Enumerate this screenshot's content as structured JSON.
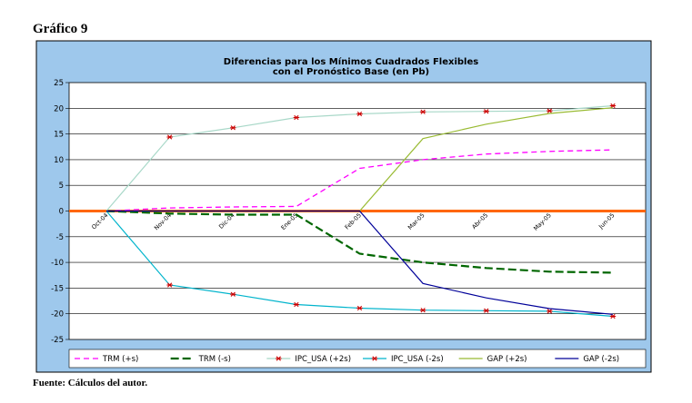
{
  "figure_label": "Gráfico 9",
  "source_note": "Fuente: Cálculos del autor.",
  "chart_data": {
    "type": "line",
    "title": "Diferencias para los Mínimos Cuadrados Flexibles",
    "subtitle": "con el Pronóstico Base (en Pb)",
    "categories": [
      "Oct-04",
      "Nov-04",
      "Dic-04",
      "Ene-05",
      "Feb-05",
      "Mar-05",
      "Abr-05",
      "May-05",
      "Jun-05"
    ],
    "ylim": [
      -25,
      25
    ],
    "yticks": [
      25,
      20,
      15,
      10,
      5,
      0,
      -5,
      -10,
      -15,
      -20,
      -25
    ],
    "grid": true,
    "legend_position": "bottom",
    "series": [
      {
        "name": "TRM (+s)",
        "values": [
          0,
          0.6,
          0.8,
          0.9,
          8.3,
          10.0,
          11.1,
          11.6,
          11.9
        ],
        "color": "#ff00ff",
        "style": "dash",
        "marker": "none"
      },
      {
        "name": "TRM (-s)",
        "values": [
          0,
          -0.5,
          -0.7,
          -0.7,
          -8.3,
          -10.0,
          -11.1,
          -11.8,
          -12.0
        ],
        "color": "#006600",
        "style": "bigdash",
        "marker": "none"
      },
      {
        "name": "IPC_USA (+2s)",
        "values": [
          0,
          14.4,
          16.2,
          18.2,
          18.9,
          19.3,
          19.4,
          19.5,
          20.5
        ],
        "color": "#a8d8c8",
        "style": "solid",
        "marker": "star",
        "marker_color": "#cc0000"
      },
      {
        "name": "IPC_USA (-2s)",
        "values": [
          0,
          -14.4,
          -16.2,
          -18.2,
          -18.9,
          -19.3,
          -19.4,
          -19.5,
          -20.5
        ],
        "color": "#00b4cc",
        "style": "solid",
        "marker": "star",
        "marker_color": "#cc0000"
      },
      {
        "name": "GAP (+2s)",
        "values": [
          0,
          0,
          0,
          0,
          0,
          14.1,
          16.9,
          19.0,
          20.1
        ],
        "color": "#99bb33",
        "style": "solid",
        "marker": "none"
      },
      {
        "name": "GAP (-2s)",
        "values": [
          0,
          0,
          0,
          0,
          0,
          -14.1,
          -16.9,
          -19.0,
          -20.1
        ],
        "color": "#000099",
        "style": "solid",
        "marker": "none"
      }
    ],
    "zero_line_color": "#ff6600",
    "outer_background": "#9ec8ec",
    "plot_background": "#ffffff"
  }
}
